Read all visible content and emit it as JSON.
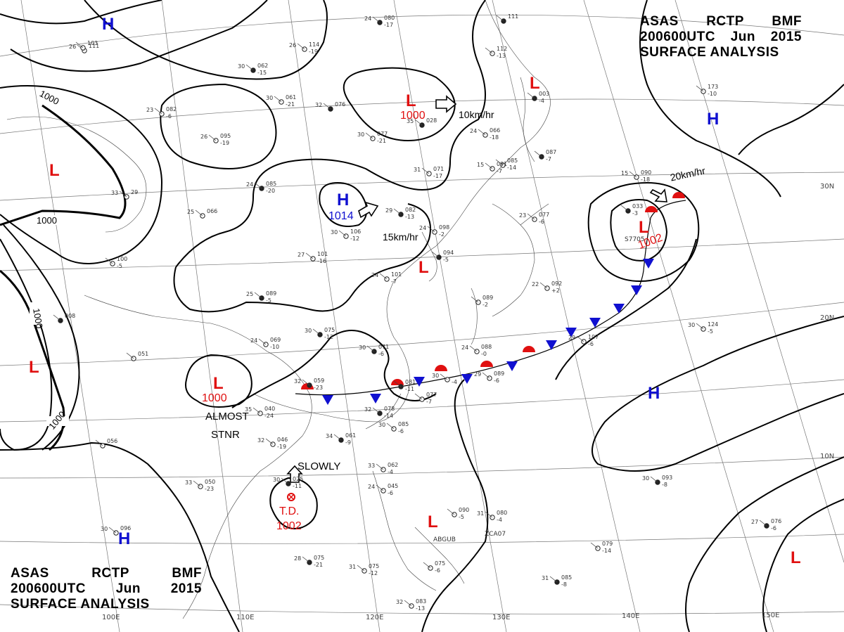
{
  "header": {
    "line1": [
      "ASAS",
      "RCTP",
      "BMF"
    ],
    "line2": [
      "200600UTC",
      "Jun",
      "2015"
    ],
    "line3": "SURFACE ANALYSIS"
  },
  "pressure_centers": [
    {
      "id": "h1",
      "type": "H",
      "value": ""
    },
    {
      "id": "h2",
      "type": "H",
      "value": ""
    },
    {
      "id": "h3",
      "type": "H",
      "value": "1014"
    },
    {
      "id": "h4",
      "type": "H",
      "value": ""
    },
    {
      "id": "h5",
      "type": "H",
      "value": ""
    },
    {
      "id": "l1",
      "type": "L",
      "value": "1000"
    },
    {
      "id": "l2",
      "type": "L",
      "value": ""
    },
    {
      "id": "l3",
      "type": "L",
      "value": ""
    },
    {
      "id": "l4",
      "type": "L",
      "value": ""
    },
    {
      "id": "l5",
      "type": "L",
      "value": "1002"
    },
    {
      "id": "l6",
      "type": "L",
      "value": "1000"
    },
    {
      "id": "l7",
      "type": "L",
      "value": ""
    },
    {
      "id": "l8",
      "type": "L",
      "value": ""
    },
    {
      "id": "l9",
      "type": "L",
      "value": ""
    },
    {
      "id": "l10",
      "type": "L",
      "value": ""
    }
  ],
  "isobar_labels": [
    "1000",
    "1000",
    "1000",
    "1000"
  ],
  "motion_labels": [
    "10km/hr",
    "20km/hr",
    "15km/hr",
    "SLOWLY"
  ],
  "annotations": [
    "ALMOST",
    "STNR"
  ],
  "tropical_depression": {
    "label": "T.D.",
    "value": "1002"
  },
  "lat_labels": [
    "30N",
    "20N",
    "10N"
  ],
  "lon_labels": [
    "110E",
    "120E",
    "130E",
    "140E",
    "150E",
    "100E"
  ],
  "stations": [
    {
      "t": "24",
      "p": "080",
      "d": "-17"
    },
    {
      "t": "26",
      "p": "114",
      "d": "-19"
    },
    {
      "t": "26",
      "p": "111",
      "d": ""
    },
    {
      "t": "30",
      "p": "062",
      "d": "-15"
    },
    {
      "t": "30",
      "p": "061",
      "d": "-21"
    },
    {
      "t": "23",
      "p": "082",
      "d": "-6"
    },
    {
      "t": "32",
      "p": "076",
      "d": ""
    },
    {
      "t": "26",
      "p": "095",
      "d": "-19"
    },
    {
      "t": "30",
      "p": "077",
      "d": "-21"
    },
    {
      "t": "35",
      "p": "028",
      "d": ""
    },
    {
      "t": "24",
      "p": "066",
      "d": "-18"
    },
    {
      "t": "",
      "p": "112",
      "d": "-13"
    },
    {
      "t": "",
      "p": "003",
      "d": "-4"
    },
    {
      "t": "",
      "p": "173",
      "d": "-10"
    },
    {
      "t": "",
      "p": "085",
      "d": "-14"
    },
    {
      "t": "24",
      "p": "085",
      "d": "-20"
    },
    {
      "t": "31",
      "p": "071",
      "d": "-17"
    },
    {
      "t": "15",
      "p": "091",
      "d": "-7"
    },
    {
      "t": "",
      "p": "087",
      "d": "-7"
    },
    {
      "t": "15",
      "p": "090",
      "d": "-18"
    },
    {
      "t": "25",
      "p": "066",
      "d": ""
    },
    {
      "t": "29",
      "p": "082",
      "d": "-13"
    },
    {
      "t": "24",
      "p": "098",
      "d": "-2"
    },
    {
      "t": "23",
      "p": "077",
      "d": "-6"
    },
    {
      "t": "",
      "p": "033",
      "d": "-3"
    },
    {
      "t": "27",
      "p": "101",
      "d": "-16"
    },
    {
      "t": "30",
      "p": "106",
      "d": "-12"
    },
    {
      "t": "",
      "p": "094",
      "d": "-5"
    },
    {
      "t": "24",
      "p": "101",
      "d": "-7"
    },
    {
      "t": "22",
      "p": "092",
      "d": "+2"
    },
    {
      "t": "25",
      "p": "089",
      "d": "-5"
    },
    {
      "t": "",
      "p": "089",
      "d": "-2"
    },
    {
      "t": "30",
      "p": "124",
      "d": "-5"
    },
    {
      "t": "30",
      "p": "075",
      "d": "-12"
    },
    {
      "t": "29",
      "p": "107",
      "d": "-6"
    },
    {
      "t": "24",
      "p": "069",
      "d": "-10"
    },
    {
      "t": "30",
      "p": "071",
      "d": "-6"
    },
    {
      "t": "24",
      "p": "088",
      "d": "-0"
    },
    {
      "t": "",
      "p": "051",
      "d": ""
    },
    {
      "t": "32",
      "p": "059",
      "d": "-23"
    },
    {
      "t": "30",
      "p": "",
      "d": "-4"
    },
    {
      "t": "29",
      "p": "089",
      "d": "-6"
    },
    {
      "t": "",
      "p": "081",
      "d": "-11"
    },
    {
      "t": "",
      "p": "077",
      "d": "-7"
    },
    {
      "t": "35",
      "p": "040",
      "d": "-24"
    },
    {
      "t": "32",
      "p": "078",
      "d": "-14"
    },
    {
      "t": "30",
      "p": "085",
      "d": "-6"
    },
    {
      "t": "32",
      "p": "046",
      "d": "-19"
    },
    {
      "t": "34",
      "p": "061",
      "d": "-9"
    },
    {
      "t": "",
      "p": "056",
      "d": ""
    },
    {
      "t": "33",
      "p": "062",
      "d": "-4"
    },
    {
      "t": "30",
      "p": "025",
      "d": "-11"
    },
    {
      "t": "33",
      "p": "050",
      "d": "-23"
    },
    {
      "t": "24",
      "p": "045",
      "d": "-6"
    },
    {
      "t": "30",
      "p": "093",
      "d": "-8"
    },
    {
      "t": "",
      "p": "090",
      "d": "-5"
    },
    {
      "t": "31",
      "p": "080",
      "d": "-4"
    },
    {
      "t": "27",
      "p": "076",
      "d": "-6"
    },
    {
      "t": "30",
      "p": "096",
      "d": ""
    },
    {
      "t": "",
      "p": "079",
      "d": "-14"
    },
    {
      "t": "28",
      "p": "075",
      "d": "-21"
    },
    {
      "t": "31",
      "p": "075",
      "d": "-12"
    },
    {
      "t": "",
      "p": "075",
      "d": "-6"
    },
    {
      "t": "31",
      "p": "085",
      "d": "-8"
    },
    {
      "t": "32",
      "p": "083",
      "d": "-13"
    },
    {
      "t": "",
      "p": "103",
      "d": ""
    },
    {
      "t": "",
      "p": "008",
      "d": ""
    },
    {
      "t": "33",
      "p": "29",
      "d": ""
    },
    {
      "t": "",
      "p": "100",
      "d": "-5"
    },
    {
      "t": "",
      "p": "111",
      "d": ""
    }
  ],
  "station_codes": [
    "ABGUB",
    "ZCA07",
    "S7705"
  ]
}
